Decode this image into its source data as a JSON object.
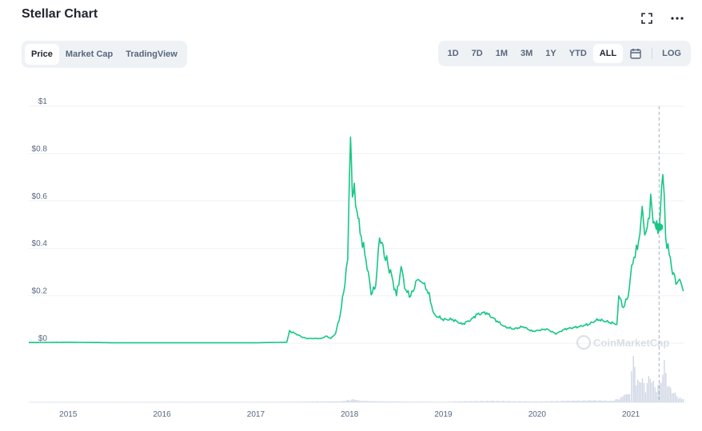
{
  "header": {
    "title": "Stellar Chart"
  },
  "icons": {
    "fullscreen": "fullscreen-icon",
    "more": "more-horizontal-icon",
    "calendar": "calendar-icon"
  },
  "tabs": [
    {
      "label": "Price",
      "active": true
    },
    {
      "label": "Market Cap",
      "active": false
    },
    {
      "label": "TradingView",
      "active": false
    }
  ],
  "ranges": [
    {
      "label": "1D",
      "active": false
    },
    {
      "label": "7D",
      "active": false
    },
    {
      "label": "1M",
      "active": false
    },
    {
      "label": "3M",
      "active": false
    },
    {
      "label": "1Y",
      "active": false
    },
    {
      "label": "YTD",
      "active": false
    },
    {
      "label": "ALL",
      "active": true
    }
  ],
  "log_label": "LOG",
  "colors": {
    "line": "#16c784",
    "volume": "#cfd6e4",
    "grid": "#eff2f5",
    "axis_text": "#58667e"
  },
  "chart_data": {
    "type": "line",
    "title": "",
    "xlabel": "",
    "ylabel": "",
    "ylim": [
      0,
      1
    ],
    "xlim": [
      2014.58,
      2021.57
    ],
    "grid": true,
    "y_ticks": [
      0,
      0.2,
      0.4,
      0.6,
      0.8,
      1
    ],
    "y_tick_labels": [
      "$0",
      "$0.2",
      "$0.4",
      "$0.6",
      "$0.8",
      "$1"
    ],
    "x_ticks": [
      2015,
      2016,
      2017,
      2018,
      2019,
      2020,
      2021
    ],
    "x_tick_labels": [
      "2015",
      "2016",
      "2017",
      "2018",
      "2019",
      "2020",
      "2021"
    ],
    "watermark": "CoinMarketCap",
    "crosshair_x": 2021.3,
    "hover_point": {
      "x": 2021.3,
      "y": 0.49
    },
    "series": [
      {
        "values": [
          [
            2014.58,
            0.003
          ],
          [
            2015.0,
            0.004
          ],
          [
            2015.5,
            0.002
          ],
          [
            2016.0,
            0.002
          ],
          [
            2016.5,
            0.002
          ],
          [
            2017.0,
            0.002
          ],
          [
            2017.33,
            0.004
          ],
          [
            2017.36,
            0.05
          ],
          [
            2017.4,
            0.045
          ],
          [
            2017.45,
            0.035
          ],
          [
            2017.5,
            0.025
          ],
          [
            2017.55,
            0.02
          ],
          [
            2017.6,
            0.02
          ],
          [
            2017.7,
            0.02
          ],
          [
            2017.75,
            0.03
          ],
          [
            2017.8,
            0.02
          ],
          [
            2017.85,
            0.04
          ],
          [
            2017.9,
            0.12
          ],
          [
            2017.95,
            0.25
          ],
          [
            2017.98,
            0.35
          ],
          [
            2018.01,
            0.89
          ],
          [
            2018.03,
            0.6
          ],
          [
            2018.05,
            0.68
          ],
          [
            2018.08,
            0.55
          ],
          [
            2018.1,
            0.5
          ],
          [
            2018.15,
            0.4
          ],
          [
            2018.2,
            0.3
          ],
          [
            2018.23,
            0.2
          ],
          [
            2018.28,
            0.25
          ],
          [
            2018.32,
            0.45
          ],
          [
            2018.37,
            0.38
          ],
          [
            2018.45,
            0.28
          ],
          [
            2018.5,
            0.2
          ],
          [
            2018.55,
            0.32
          ],
          [
            2018.6,
            0.22
          ],
          [
            2018.65,
            0.2
          ],
          [
            2018.72,
            0.27
          ],
          [
            2018.8,
            0.25
          ],
          [
            2018.85,
            0.2
          ],
          [
            2018.9,
            0.12
          ],
          [
            2019.0,
            0.1
          ],
          [
            2019.1,
            0.1
          ],
          [
            2019.2,
            0.08
          ],
          [
            2019.3,
            0.1
          ],
          [
            2019.35,
            0.12
          ],
          [
            2019.45,
            0.13
          ],
          [
            2019.55,
            0.1
          ],
          [
            2019.65,
            0.07
          ],
          [
            2019.75,
            0.06
          ],
          [
            2019.85,
            0.07
          ],
          [
            2019.95,
            0.05
          ],
          [
            2020.1,
            0.06
          ],
          [
            2020.2,
            0.04
          ],
          [
            2020.3,
            0.06
          ],
          [
            2020.45,
            0.07
          ],
          [
            2020.55,
            0.08
          ],
          [
            2020.65,
            0.1
          ],
          [
            2020.75,
            0.09
          ],
          [
            2020.85,
            0.08
          ],
          [
            2020.87,
            0.2
          ],
          [
            2020.92,
            0.15
          ],
          [
            2020.97,
            0.2
          ],
          [
            2021.02,
            0.35
          ],
          [
            2021.07,
            0.4
          ],
          [
            2021.12,
            0.55
          ],
          [
            2021.16,
            0.45
          ],
          [
            2021.21,
            0.6
          ],
          [
            2021.25,
            0.5
          ],
          [
            2021.3,
            0.48
          ],
          [
            2021.34,
            0.72
          ],
          [
            2021.37,
            0.45
          ],
          [
            2021.42,
            0.35
          ],
          [
            2021.48,
            0.25
          ],
          [
            2021.52,
            0.27
          ],
          [
            2021.56,
            0.22
          ]
        ]
      }
    ],
    "volume": [
      [
        2014.58,
        0.005
      ],
      [
        2017.0,
        0.006
      ],
      [
        2017.9,
        0.02
      ],
      [
        2018.0,
        0.05
      ],
      [
        2018.05,
        0.06
      ],
      [
        2018.1,
        0.03
      ],
      [
        2018.5,
        0.015
      ],
      [
        2019.0,
        0.008
      ],
      [
        2019.2,
        0.02
      ],
      [
        2019.5,
        0.03
      ],
      [
        2019.8,
        0.02
      ],
      [
        2020.0,
        0.015
      ],
      [
        2020.3,
        0.03
      ],
      [
        2020.6,
        0.04
      ],
      [
        2020.8,
        0.03
      ],
      [
        2020.9,
        0.1
      ],
      [
        2020.98,
        0.25
      ],
      [
        2021.02,
        0.9
      ],
      [
        2021.05,
        0.35
      ],
      [
        2021.1,
        0.5
      ],
      [
        2021.15,
        0.3
      ],
      [
        2021.2,
        0.55
      ],
      [
        2021.25,
        0.3
      ],
      [
        2021.3,
        0.35
      ],
      [
        2021.35,
        0.75
      ],
      [
        2021.4,
        0.3
      ],
      [
        2021.45,
        0.2
      ],
      [
        2021.5,
        0.1
      ],
      [
        2021.57,
        0.05
      ]
    ]
  }
}
